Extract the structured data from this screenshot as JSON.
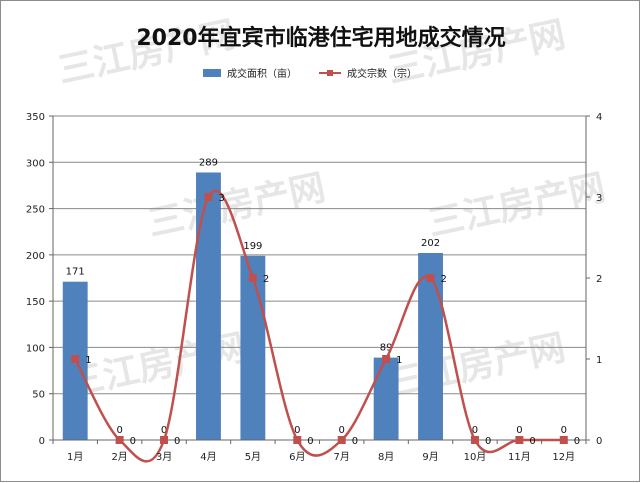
{
  "watermark": "三江房产网",
  "chart_data": {
    "type": "bar",
    "title": "2020年宜宾市临港住宅用地成交情况",
    "categories": [
      "1月",
      "2月",
      "3月",
      "4月",
      "5月",
      "6月",
      "7月",
      "8月",
      "9月",
      "10月",
      "11月",
      "12月"
    ],
    "series": [
      {
        "name": "成交面积（亩）",
        "type": "bar",
        "axis": "left",
        "color": "#4f81bd",
        "values": [
          171,
          0,
          0,
          289,
          199,
          0,
          0,
          89,
          202,
          0,
          0,
          0
        ]
      },
      {
        "name": "成交宗数（宗）",
        "type": "line",
        "axis": "right",
        "color": "#c0504d",
        "values": [
          1,
          0,
          0,
          3,
          2,
          0,
          0,
          1,
          2,
          0,
          0,
          0
        ]
      }
    ],
    "y_left": {
      "min": 0,
      "max": 350,
      "ticks": [
        0,
        50,
        100,
        150,
        200,
        250,
        300,
        350
      ]
    },
    "y_right": {
      "min": 0,
      "max": 4,
      "ticks": [
        0,
        1,
        2,
        3,
        4
      ]
    },
    "grid": true,
    "legend_position": "top"
  }
}
